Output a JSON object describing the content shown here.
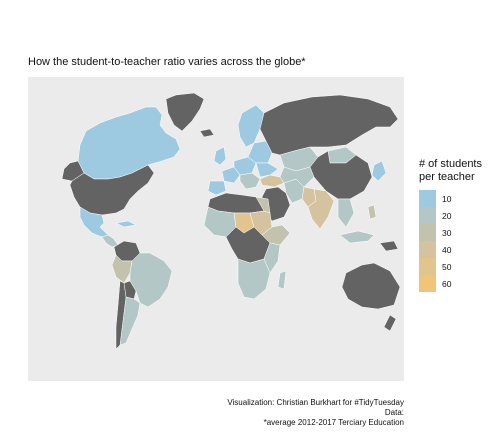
{
  "title": "How the student-to-teacher ratio varies across the globe*",
  "legend": {
    "title": "# of students per teacher",
    "items": [
      {
        "label": "10",
        "value": 10,
        "color": "#9ecae1"
      },
      {
        "label": "20",
        "value": 20,
        "color": "#b3c7c7"
      },
      {
        "label": "30",
        "value": 30,
        "color": "#c3c3ad"
      },
      {
        "label": "40",
        "value": 40,
        "color": "#d5c39f"
      },
      {
        "label": "50",
        "value": 50,
        "color": "#e1c58d"
      },
      {
        "label": "60",
        "value": 60,
        "color": "#eec57a"
      }
    ]
  },
  "colors": {
    "panel_background": "#ebebeb",
    "no_data": "#636363",
    "border": "#ffffff"
  },
  "caption": {
    "line1": "Visualization: Christian Burkhart for #TidyTuesday",
    "line2": "Data:",
    "line3": "*average 2012-2017 Terciary Education"
  }
}
